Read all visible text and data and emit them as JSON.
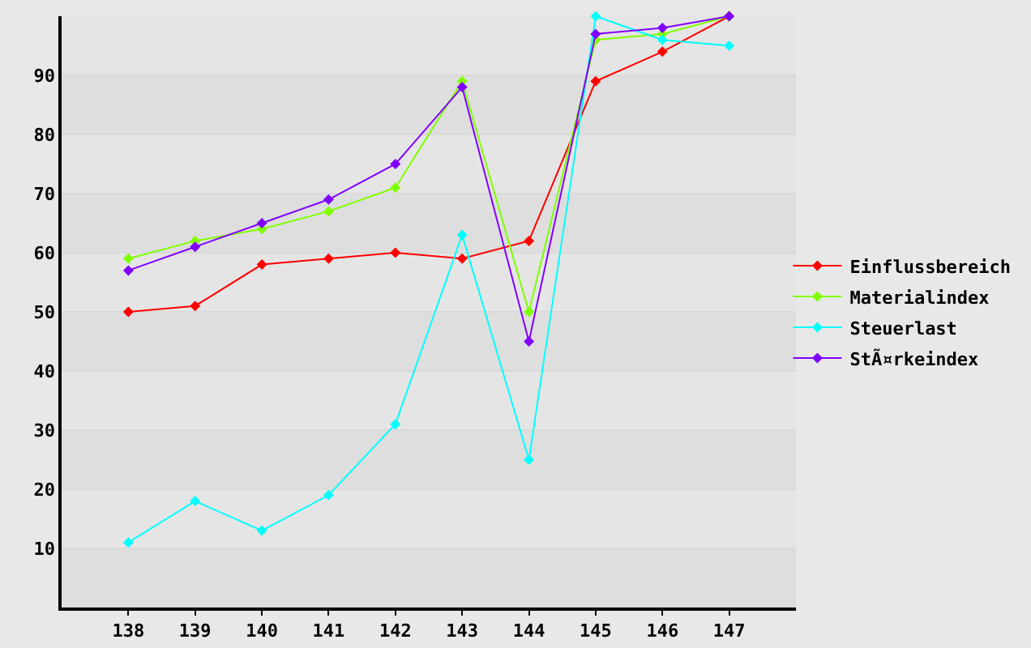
{
  "chart_data": {
    "type": "line",
    "categories": [
      "138",
      "139",
      "140",
      "141",
      "142",
      "143",
      "144",
      "145",
      "146",
      "147"
    ],
    "series": [
      {
        "name": "Einflussbereich",
        "color": "#ff0000",
        "values": [
          50,
          51,
          58,
          59,
          60,
          59,
          62,
          89,
          94,
          100
        ]
      },
      {
        "name": "Materialindex",
        "color": "#80ff00",
        "values": [
          59,
          62,
          64,
          67,
          71,
          89,
          50,
          96,
          97,
          100
        ]
      },
      {
        "name": "Steuerlast",
        "color": "#00ffff",
        "values": [
          11,
          18,
          13,
          19,
          31,
          63,
          25,
          100,
          96,
          95
        ]
      },
      {
        "name": "StÃ¤rkeindex",
        "color": "#8000ff",
        "values": [
          57,
          61,
          65,
          69,
          75,
          88,
          45,
          97,
          98,
          100
        ]
      }
    ],
    "ylim": [
      0,
      100
    ],
    "yticks": [
      10,
      20,
      30,
      40,
      50,
      60,
      70,
      80,
      90
    ],
    "grid": "y",
    "legend": "right",
    "marker": "diamond",
    "line_style": "solid"
  }
}
